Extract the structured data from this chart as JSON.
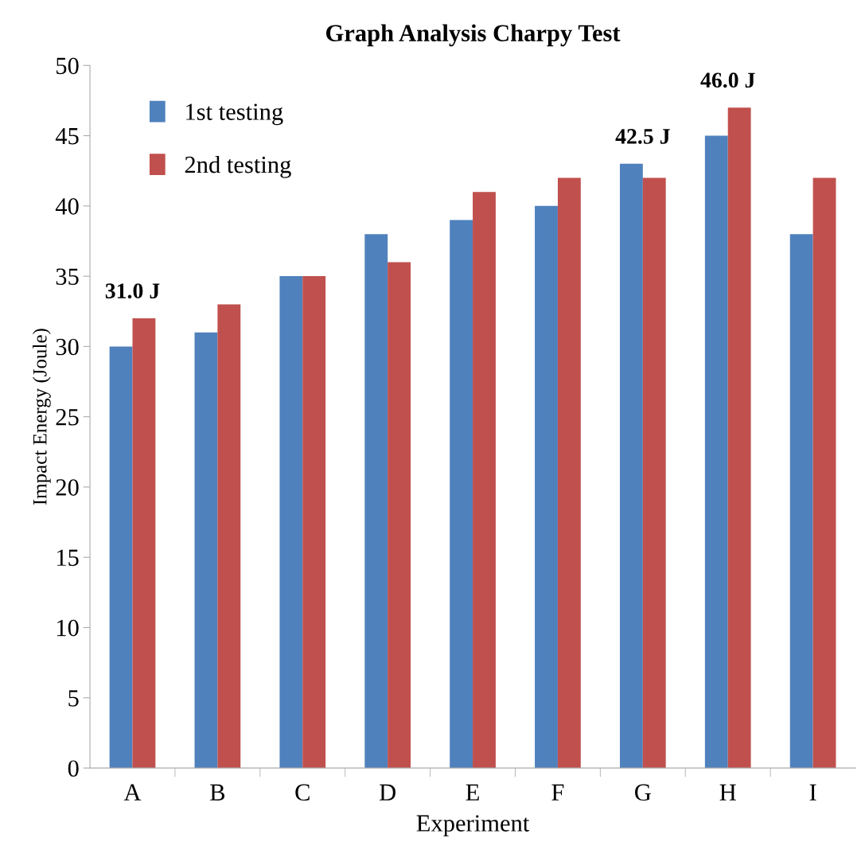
{
  "chart_data": {
    "type": "bar",
    "title": "Graph Analysis Charpy Test",
    "xlabel": "Experiment",
    "ylabel": "Impact Energy (Joule)",
    "categories": [
      "A",
      "B",
      "C",
      "D",
      "E",
      "F",
      "G",
      "H",
      "I"
    ],
    "series": [
      {
        "name": "1st testing",
        "color": "#4f81bd",
        "values": [
          30,
          31,
          35,
          38,
          39,
          40,
          43,
          45,
          38
        ]
      },
      {
        "name": "2nd testing",
        "color": "#c0504d",
        "values": [
          32,
          33,
          35,
          36,
          41,
          42,
          42,
          47,
          42
        ]
      }
    ],
    "ylim": [
      0,
      50
    ],
    "yticks": [
      0,
      5,
      10,
      15,
      20,
      25,
      30,
      35,
      40,
      45,
      50
    ],
    "grid": false,
    "legend": "top left",
    "annotations": [
      {
        "text": "31.0 J",
        "x": "A",
        "y": 32
      },
      {
        "text": "42.5 J",
        "x": "G",
        "y": 43
      },
      {
        "text": "46.0 J",
        "x": "H",
        "y": 47
      }
    ]
  }
}
